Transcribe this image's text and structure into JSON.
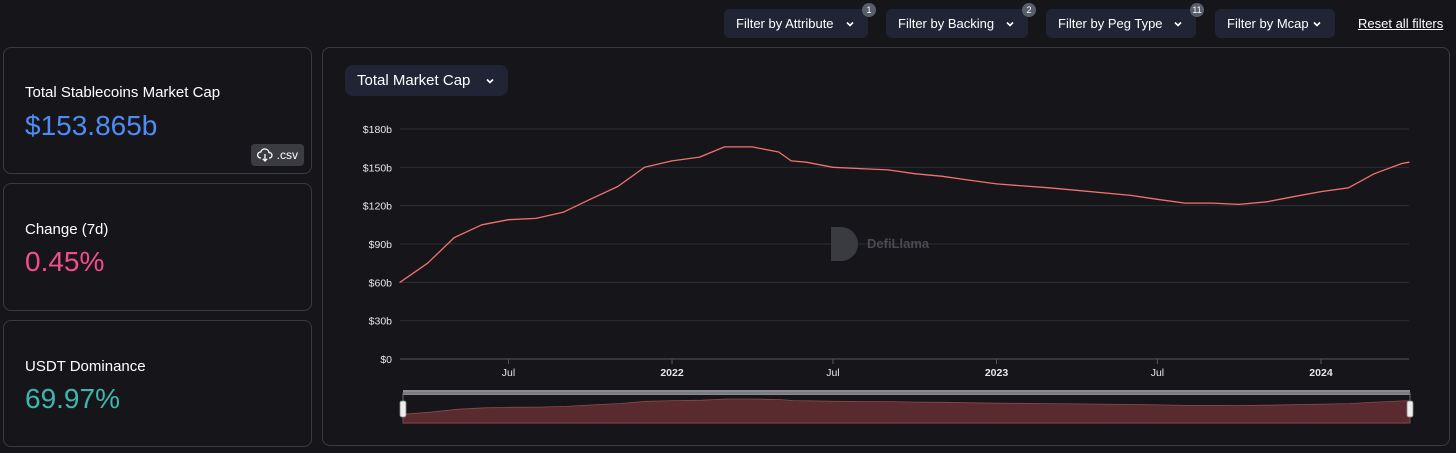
{
  "filters": [
    {
      "label": "Filter by Attribute",
      "badge": "1"
    },
    {
      "label": "Filter by Backing",
      "badge": "2"
    },
    {
      "label": "Filter by Peg Type",
      "badge": "11"
    },
    {
      "label": "Filter by Mcap",
      "badge": ""
    }
  ],
  "reset_label": "Reset all filters",
  "cards": {
    "market_cap": {
      "label": "Total Stablecoins Market Cap",
      "value": "$153.865b",
      "color": "#4e8cf5"
    },
    "change": {
      "label": "Change (7d)",
      "value": "0.45%",
      "color": "#f34c8f"
    },
    "dominance": {
      "label": "USDT Dominance",
      "value": "69.97%",
      "color": "#3fb5b0"
    }
  },
  "csv_label": ".csv",
  "metric_select": {
    "label": "Total Market Cap"
  },
  "watermark": "DefiLlama",
  "chart_data": {
    "type": "area",
    "y_unit": "billions USD",
    "ylim": [
      0,
      180
    ],
    "y_ticks": [
      "$0",
      "$30b",
      "$60b",
      "$90b",
      "$120b",
      "$150b",
      "$180b"
    ],
    "x_range": [
      "2021-03-01",
      "2024-04-09"
    ],
    "x_ticks": [
      {
        "date": "2021-07-01",
        "label": "Jul",
        "bold": false
      },
      {
        "date": "2022-01-01",
        "label": "2022",
        "bold": true
      },
      {
        "date": "2022-07-01",
        "label": "Jul",
        "bold": false
      },
      {
        "date": "2023-01-01",
        "label": "2023",
        "bold": true
      },
      {
        "date": "2023-07-01",
        "label": "Jul",
        "bold": false
      },
      {
        "date": "2024-01-01",
        "label": "2024",
        "bold": true
      }
    ],
    "grid": true,
    "line_color": "#f0716e",
    "series": [
      {
        "points": [
          [
            "2021-03-01",
            60
          ],
          [
            "2021-04-01",
            75
          ],
          [
            "2021-05-01",
            95
          ],
          [
            "2021-06-01",
            105
          ],
          [
            "2021-07-01",
            109
          ],
          [
            "2021-08-01",
            110
          ],
          [
            "2021-09-01",
            115
          ],
          [
            "2021-10-01",
            125
          ],
          [
            "2021-11-01",
            135
          ],
          [
            "2021-12-01",
            150
          ],
          [
            "2022-01-01",
            155
          ],
          [
            "2022-02-01",
            158
          ],
          [
            "2022-03-01",
            166
          ],
          [
            "2022-04-01",
            166
          ],
          [
            "2022-05-01",
            162
          ],
          [
            "2022-05-15",
            155
          ],
          [
            "2022-06-01",
            154
          ],
          [
            "2022-07-01",
            150
          ],
          [
            "2022-08-01",
            149
          ],
          [
            "2022-09-01",
            148
          ],
          [
            "2022-10-01",
            145
          ],
          [
            "2022-11-01",
            143
          ],
          [
            "2022-12-01",
            140
          ],
          [
            "2023-01-01",
            137
          ],
          [
            "2023-03-01",
            134
          ],
          [
            "2023-04-01",
            132
          ],
          [
            "2023-06-01",
            128
          ],
          [
            "2023-07-01",
            125
          ],
          [
            "2023-08-01",
            122
          ],
          [
            "2023-09-01",
            122
          ],
          [
            "2023-10-01",
            121
          ],
          [
            "2023-11-01",
            123
          ],
          [
            "2023-12-01",
            127
          ],
          [
            "2024-01-01",
            131
          ],
          [
            "2024-02-01",
            134
          ],
          [
            "2024-03-01",
            145
          ],
          [
            "2024-04-01",
            153
          ],
          [
            "2024-04-09",
            154
          ]
        ]
      }
    ]
  }
}
